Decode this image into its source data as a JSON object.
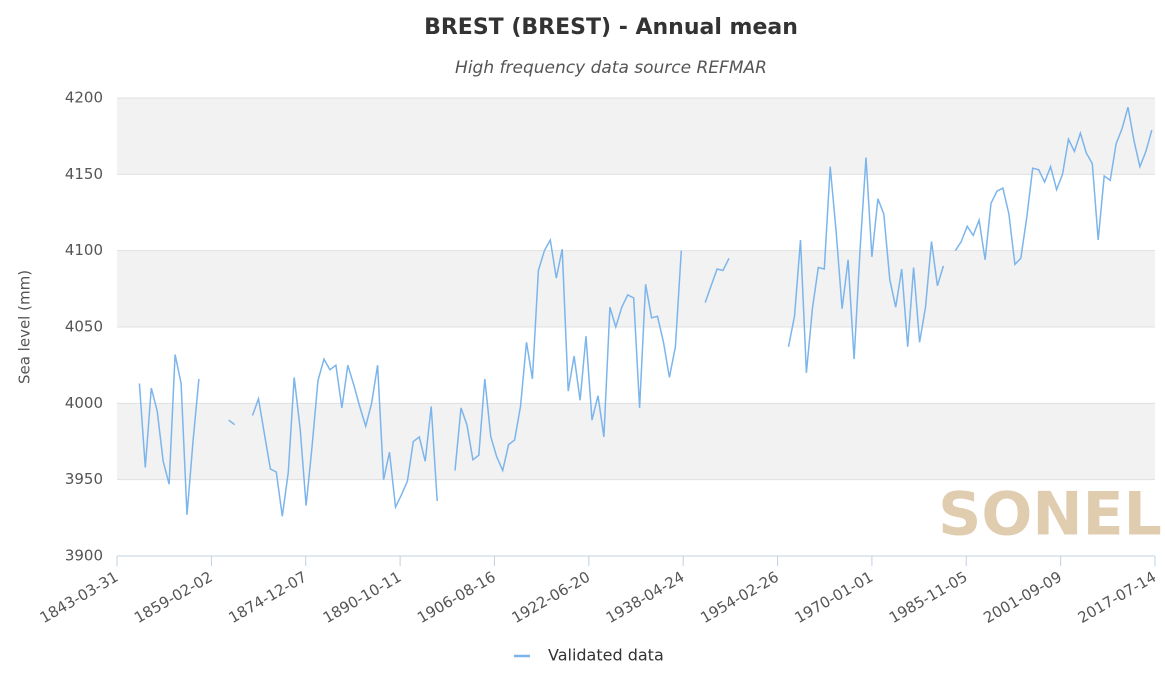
{
  "chart_data": {
    "type": "line",
    "title": "BREST (BREST) - Annual mean",
    "subtitle": "High frequency data source REFMAR",
    "y_label": "Sea level (mm)",
    "watermark": "SONEL",
    "x": [
      1847,
      1848,
      1849,
      1850,
      1851,
      1852,
      1853,
      1854,
      1855,
      1856,
      1857,
      1858,
      1859,
      1860,
      1861,
      1862,
      1863,
      1864,
      1865,
      1866,
      1867,
      1868,
      1869,
      1870,
      1871,
      1872,
      1873,
      1874,
      1875,
      1876,
      1877,
      1878,
      1879,
      1880,
      1881,
      1882,
      1883,
      1884,
      1885,
      1886,
      1887,
      1888,
      1889,
      1890,
      1891,
      1892,
      1893,
      1894,
      1895,
      1896,
      1897,
      1898,
      1899,
      1900,
      1901,
      1902,
      1903,
      1904,
      1905,
      1906,
      1907,
      1908,
      1909,
      1910,
      1911,
      1912,
      1913,
      1914,
      1915,
      1916,
      1917,
      1918,
      1919,
      1920,
      1921,
      1922,
      1923,
      1924,
      1925,
      1926,
      1927,
      1928,
      1929,
      1930,
      1931,
      1932,
      1933,
      1934,
      1935,
      1936,
      1937,
      1938,
      1939,
      1940,
      1941,
      1942,
      1943,
      1944,
      1945,
      1946,
      1947,
      1948,
      1949,
      1950,
      1951,
      1952,
      1953,
      1954,
      1955,
      1956,
      1957,
      1958,
      1959,
      1960,
      1961,
      1962,
      1963,
      1964,
      1965,
      1966,
      1967,
      1968,
      1969,
      1970,
      1971,
      1972,
      1973,
      1974,
      1975,
      1976,
      1977,
      1978,
      1979,
      1980,
      1981,
      1982,
      1983,
      1984,
      1985,
      1986,
      1987,
      1988,
      1989,
      1990,
      1991,
      1992,
      1993,
      1994,
      1995,
      1996,
      1997,
      1998,
      1999,
      2000,
      2001,
      2002,
      2003,
      2004,
      2005,
      2006,
      2007,
      2008,
      2009,
      2010,
      2011,
      2012,
      2013,
      2014,
      2015,
      2016,
      2017
    ],
    "series": [
      {
        "name": "Validated data",
        "color": "#7cb5ec",
        "values": [
          4013,
          3958,
          4010,
          3995,
          3962,
          3947,
          4032,
          4013,
          3927,
          3975,
          4016,
          null,
          null,
          null,
          null,
          3989,
          3986,
          null,
          null,
          3992,
          4003,
          3980,
          3957,
          3955,
          3926,
          3955,
          4017,
          3983,
          3933,
          3972,
          4015,
          4029,
          4022,
          4025,
          3997,
          4025,
          4012,
          3998,
          3985,
          4000,
          4025,
          3950,
          3968,
          3932,
          3940,
          3949,
          3975,
          3978,
          3962,
          3998,
          3936,
          null,
          null,
          3956,
          3997,
          3986,
          3963,
          3966,
          4016,
          3978,
          3965,
          3956,
          3973,
          3976,
          3998,
          4040,
          4016,
          4087,
          4100,
          4107,
          4082,
          4101,
          4008,
          4031,
          4002,
          4044,
          3989,
          4005,
          3978,
          4063,
          4050,
          4063,
          4071,
          4069,
          3997,
          4078,
          4056,
          4057,
          4040,
          4017,
          4037,
          4100,
          null,
          null,
          null,
          4066,
          4077,
          4088,
          4087,
          4095,
          null,
          null,
          null,
          null,
          null,
          null,
          null,
          null,
          null,
          4037,
          4057,
          4107,
          4020,
          4062,
          4089,
          4088,
          4155,
          4112,
          4062,
          4094,
          4029,
          4100,
          4161,
          4096,
          4134,
          4124,
          4081,
          4063,
          4088,
          4037,
          4089,
          4040,
          4063,
          4106,
          4077,
          4090,
          null,
          4100,
          4106,
          4116,
          4110,
          4120,
          4094,
          4131,
          4139,
          4141,
          4124,
          4091,
          4095,
          4122,
          4154,
          4153,
          4145,
          4155,
          4140,
          4150,
          4173,
          4165,
          4177,
          4164,
          4157,
          4107,
          4149,
          4146,
          4170,
          4180,
          4194,
          4172,
          4155,
          4165,
          4179
        ]
      }
    ],
    "xlim": [
      1843.245,
      2017.53
    ],
    "xticks": [
      {
        "value": 1843.245,
        "label": "1843-03-31"
      },
      {
        "value": 1859.09,
        "label": "1859-02-02"
      },
      {
        "value": 1874.93,
        "label": "1874-12-07"
      },
      {
        "value": 1890.78,
        "label": "1890-10-11"
      },
      {
        "value": 1906.62,
        "label": "1906-08-16"
      },
      {
        "value": 1922.47,
        "label": "1922-06-20"
      },
      {
        "value": 1938.31,
        "label": "1938-04-24"
      },
      {
        "value": 1954.16,
        "label": "1954-02-26"
      },
      {
        "value": 1970.0,
        "label": "1970-01-01"
      },
      {
        "value": 1985.84,
        "label": "1985-11-05"
      },
      {
        "value": 2001.69,
        "label": "2001-09-09"
      },
      {
        "value": 2017.53,
        "label": "2017-07-14"
      }
    ],
    "ylim": [
      3900,
      4200
    ],
    "yticks": [
      3900,
      3950,
      4000,
      4050,
      4100,
      4150,
      4200
    ],
    "grid": true,
    "alternate_bands": true,
    "legend": "bottom"
  }
}
